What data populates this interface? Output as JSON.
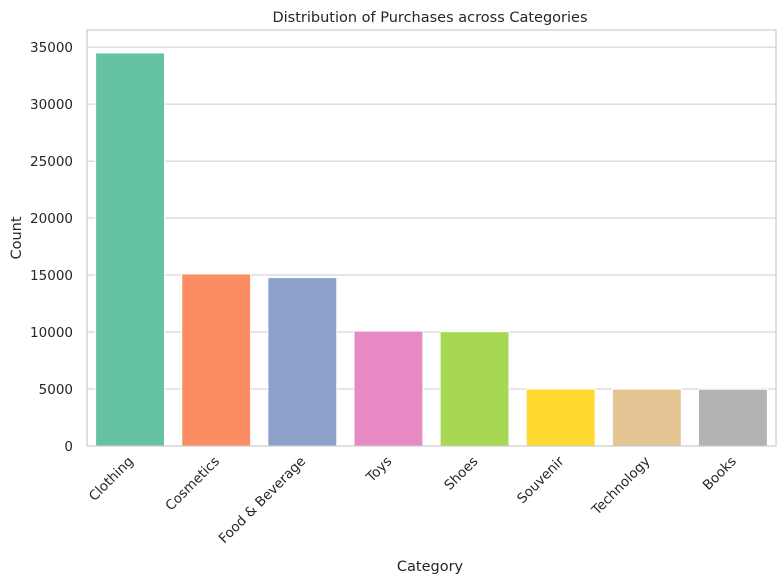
{
  "chart_data": {
    "type": "bar",
    "title": "Distribution of Purchases across Categories",
    "xlabel": "Category",
    "ylabel": "Count",
    "categories": [
      "Clothing",
      "Cosmetics",
      "Food & Beverage",
      "Toys",
      "Shoes",
      "Souvenir",
      "Technology",
      "Books"
    ],
    "values": [
      34487,
      15097,
      14776,
      10087,
      10034,
      4999,
      4996,
      4981
    ],
    "colors": [
      "#66c2a5",
      "#fc8d62",
      "#8da0cb",
      "#e78ac3",
      "#a6d854",
      "#ffd92f",
      "#e5c494",
      "#b3b3b3"
    ],
    "ylim": [
      0,
      36500
    ],
    "yticks": [
      0,
      5000,
      10000,
      15000,
      20000,
      25000,
      30000,
      35000
    ],
    "grid": "horizontal"
  }
}
